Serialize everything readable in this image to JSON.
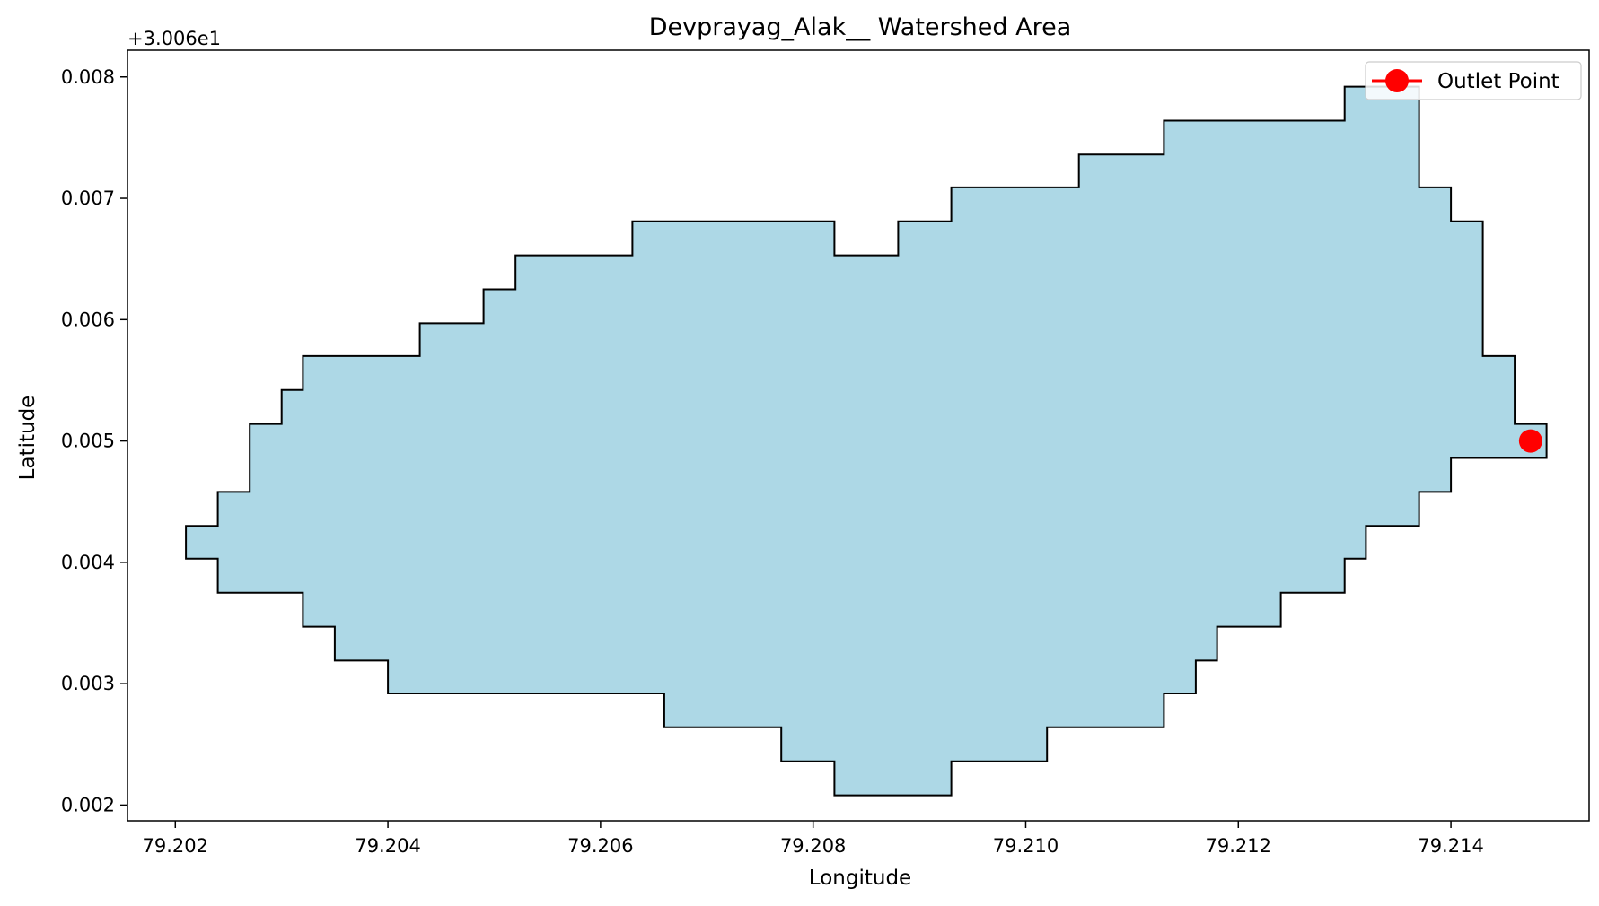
{
  "chart_data": {
    "type": "area",
    "title": "Devprayag_Alak__ Watershed Area",
    "xlabel": "Longitude",
    "ylabel": "Latitude",
    "y_offset_label": "+3.006e1",
    "xlim": [
      79.20155,
      79.2153
    ],
    "ylim": [
      0.00187,
      0.00822
    ],
    "x_ticks": [
      79.202,
      79.204,
      79.206,
      79.208,
      79.21,
      79.212,
      79.214
    ],
    "x_tick_labels": [
      "79.202",
      "79.204",
      "79.206",
      "79.208",
      "79.210",
      "79.212",
      "79.214"
    ],
    "y_ticks": [
      0.002,
      0.003,
      0.004,
      0.005,
      0.006,
      0.007,
      0.008
    ],
    "y_tick_labels": [
      "0.002",
      "0.003",
      "0.004",
      "0.005",
      "0.006",
      "0.007",
      "0.008"
    ],
    "grid": false,
    "legend": {
      "position": "top-right",
      "entries": [
        {
          "label": "Outlet Point",
          "color": "#ff0000",
          "marker": "circle-line"
        }
      ]
    },
    "colors": {
      "fill": "#add8e6",
      "edge": "#000000",
      "outlet": "#ff0000"
    },
    "watershed_polygon": [
      [
        79.2021,
        0.0043
      ],
      [
        79.2024,
        0.0043
      ],
      [
        79.2024,
        0.00458
      ],
      [
        79.2027,
        0.00458
      ],
      [
        79.2027,
        0.00514
      ],
      [
        79.203,
        0.00514
      ],
      [
        79.203,
        0.00542
      ],
      [
        79.2032,
        0.00542
      ],
      [
        79.2032,
        0.0057
      ],
      [
        79.2043,
        0.0057
      ],
      [
        79.2043,
        0.00597
      ],
      [
        79.2049,
        0.00597
      ],
      [
        79.2049,
        0.00625
      ],
      [
        79.2052,
        0.00625
      ],
      [
        79.2052,
        0.00653
      ],
      [
        79.2063,
        0.00653
      ],
      [
        79.2063,
        0.00681
      ],
      [
        79.2082,
        0.00681
      ],
      [
        79.2082,
        0.00653
      ],
      [
        79.2088,
        0.00653
      ],
      [
        79.2088,
        0.00681
      ],
      [
        79.2093,
        0.00681
      ],
      [
        79.2093,
        0.00709
      ],
      [
        79.2105,
        0.00709
      ],
      [
        79.2105,
        0.00736
      ],
      [
        79.2113,
        0.00736
      ],
      [
        79.2113,
        0.00764
      ],
      [
        79.213,
        0.00764
      ],
      [
        79.213,
        0.00792
      ],
      [
        79.2137,
        0.00792
      ],
      [
        79.2137,
        0.00709
      ],
      [
        79.214,
        0.00709
      ],
      [
        79.214,
        0.00681
      ],
      [
        79.2143,
        0.00681
      ],
      [
        79.2143,
        0.0057
      ],
      [
        79.2146,
        0.0057
      ],
      [
        79.2146,
        0.00514
      ],
      [
        79.2149,
        0.00514
      ],
      [
        79.2149,
        0.00486
      ],
      [
        79.214,
        0.00486
      ],
      [
        79.214,
        0.00458
      ],
      [
        79.2137,
        0.00458
      ],
      [
        79.2137,
        0.0043
      ],
      [
        79.2132,
        0.0043
      ],
      [
        79.2132,
        0.00403
      ],
      [
        79.213,
        0.00403
      ],
      [
        79.213,
        0.00375
      ],
      [
        79.2124,
        0.00375
      ],
      [
        79.2124,
        0.00347
      ],
      [
        79.2118,
        0.00347
      ],
      [
        79.2118,
        0.00319
      ],
      [
        79.2116,
        0.00319
      ],
      [
        79.2116,
        0.00292
      ],
      [
        79.2113,
        0.00292
      ],
      [
        79.2113,
        0.00264
      ],
      [
        79.2102,
        0.00264
      ],
      [
        79.2102,
        0.00236
      ],
      [
        79.2093,
        0.00236
      ],
      [
        79.2093,
        0.00208
      ],
      [
        79.2082,
        0.00208
      ],
      [
        79.2082,
        0.00236
      ],
      [
        79.2077,
        0.00236
      ],
      [
        79.2077,
        0.00264
      ],
      [
        79.2066,
        0.00264
      ],
      [
        79.2066,
        0.00292
      ],
      [
        79.204,
        0.00292
      ],
      [
        79.204,
        0.00319
      ],
      [
        79.2035,
        0.00319
      ],
      [
        79.2035,
        0.00347
      ],
      [
        79.2032,
        0.00347
      ],
      [
        79.2032,
        0.00375
      ],
      [
        79.2024,
        0.00375
      ],
      [
        79.2024,
        0.00403
      ],
      [
        79.2021,
        0.00403
      ]
    ],
    "outlet_point": {
      "x": 79.21475,
      "y": 0.005
    }
  }
}
